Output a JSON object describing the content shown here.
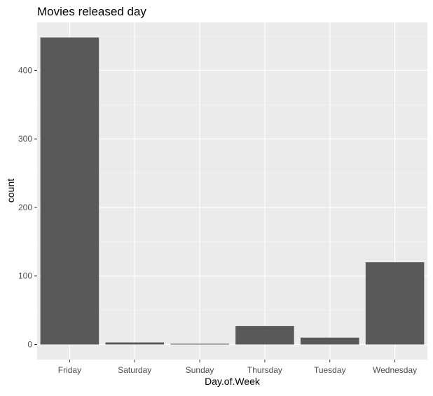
{
  "chart_data": {
    "type": "bar",
    "title": "Movies released day",
    "xlabel": "Day.of.Week",
    "ylabel": "count",
    "categories": [
      "Friday",
      "Saturday",
      "Sunday",
      "Thursday",
      "Tuesday",
      "Wednesday"
    ],
    "values": [
      448,
      3,
      1,
      27,
      10,
      120
    ],
    "ylim": [
      -22,
      470
    ],
    "yticks": [
      0,
      100,
      200,
      300,
      400
    ],
    "grid": true,
    "legend": "none",
    "colors": {
      "bar": "#595959",
      "panel": "#ebebeb",
      "grid_major": "#ffffff",
      "grid_minor": "#f5f5f5",
      "tick_text": "#4d4d4d"
    }
  }
}
